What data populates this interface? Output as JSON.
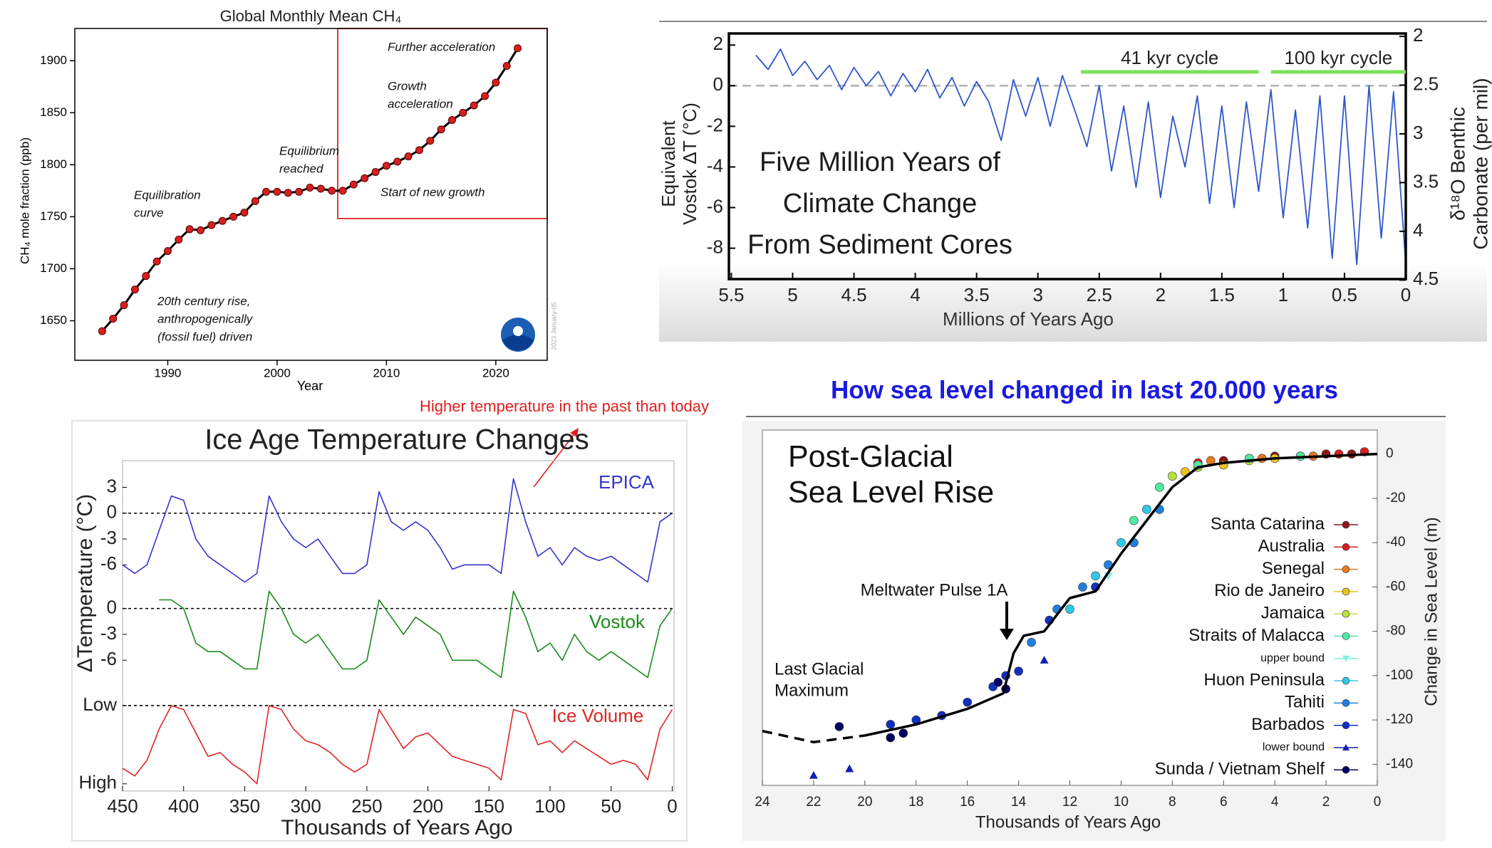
{
  "chart_data": [
    {
      "type": "line",
      "title": "Global Monthly Mean CH₄",
      "x_label": "Year",
      "y_label": "CH₄ mole fraction (ppb)",
      "xlim": [
        1981.5,
        2024.7
      ],
      "xticks": [
        1990,
        2000,
        2010,
        2020
      ],
      "ylim": [
        1612,
        1931
      ],
      "yticks": [
        1650,
        1700,
        1750,
        1800,
        1850,
        1900
      ],
      "x": [
        1984,
        1985,
        1986,
        1987,
        1988,
        1989,
        1990,
        1991,
        1992,
        1993,
        1994,
        1995,
        1996,
        1997,
        1998,
        1999,
        2000,
        2001,
        2002,
        2003,
        2004,
        2005,
        2006,
        2007,
        2008,
        2009,
        2010,
        2011,
        2012,
        2013,
        2014,
        2015,
        2016,
        2017,
        2018,
        2019,
        2020,
        2021,
        2022
      ],
      "series": [
        {
          "color": "#000000",
          "marker_color": "#d62020",
          "values": [
            1640,
            1652,
            1665,
            1680,
            1693,
            1707,
            1717,
            1728,
            1738,
            1737,
            1742,
            1746,
            1750,
            1754,
            1765,
            1774,
            1774,
            1773,
            1774,
            1778,
            1777,
            1775,
            1775,
            1781,
            1787,
            1793,
            1799,
            1803,
            1808,
            1814,
            1823,
            1834,
            1843,
            1850,
            1857,
            1866,
            1879,
            1895,
            1912
          ]
        }
      ],
      "annotations": [
        {
          "lines": [
            "Further acceleration"
          ]
        },
        {
          "lines": [
            "Growth",
            "acceleration"
          ]
        },
        {
          "lines": [
            "Equilibrium",
            "reached"
          ]
        },
        {
          "lines": [
            "Equilibration",
            "curve"
          ]
        },
        {
          "lines": [
            "Start of new growth"
          ]
        },
        {
          "lines": [
            "20th century rise,",
            "anthropogenically",
            "(fossil fuel) driven"
          ]
        }
      ],
      "stamp": "2023 January-05"
    },
    {
      "type": "line",
      "title_lines": [
        "Five Million Years of",
        "Climate Change",
        "From Sediment Cores"
      ],
      "x_label": "Millions of Years Ago",
      "y_label": [
        "Equivalent",
        "Vostok ΔT (°C)"
      ],
      "y2_label": [
        "δ¹⁸O Benthic",
        "Carbonate (per mil)"
      ],
      "xlim": [
        5.52,
        0
      ],
      "xticks": [
        5.5,
        5,
        4.5,
        4,
        3.5,
        3,
        2.5,
        2,
        1.5,
        1,
        0.5,
        0
      ],
      "ylim": [
        -9.52,
        2.57
      ],
      "yticks": [
        2,
        0,
        -2,
        -4,
        -6,
        -8
      ],
      "y2lim": [
        4.49,
        1.97
      ],
      "y2ticks": [
        2,
        2.5,
        3,
        3.5,
        4,
        4.5
      ],
      "hline": 0,
      "x": [
        5.3,
        5.2,
        5.1,
        5.0,
        4.9,
        4.8,
        4.7,
        4.6,
        4.5,
        4.4,
        4.3,
        4.2,
        4.1,
        4.0,
        3.9,
        3.8,
        3.7,
        3.6,
        3.5,
        3.4,
        3.3,
        3.2,
        3.1,
        3.0,
        2.9,
        2.8,
        2.7,
        2.6,
        2.5,
        2.4,
        2.3,
        2.2,
        2.1,
        2.0,
        1.9,
        1.8,
        1.7,
        1.6,
        1.5,
        1.4,
        1.3,
        1.2,
        1.1,
        1.0,
        0.9,
        0.8,
        0.7,
        0.6,
        0.5,
        0.4,
        0.3,
        0.2,
        0.1,
        0
      ],
      "series": [
        {
          "color": "#2f55c9",
          "values": [
            1.5,
            0.8,
            1.8,
            0.5,
            1.2,
            0.3,
            1.0,
            -0.2,
            0.9,
            0.0,
            0.7,
            -0.5,
            0.6,
            -0.3,
            0.8,
            -0.6,
            0.4,
            -1.0,
            0.2,
            -0.8,
            -2.7,
            0.3,
            -1.5,
            0.4,
            -2.0,
            0.5,
            -1.2,
            -3.0,
            0.0,
            -4.2,
            -1.0,
            -5.0,
            -0.8,
            -5.5,
            -1.5,
            -4.0,
            -0.5,
            -5.8,
            -1.0,
            -6.0,
            -0.8,
            -5.2,
            -0.2,
            -6.5,
            -1.2,
            -7.0,
            -0.5,
            -8.5,
            -0.5,
            -8.8,
            0.0,
            -7.5,
            -0.3,
            -8.8
          ]
        }
      ],
      "cycle_color": "#7ee05a",
      "cycles": [
        {
          "label": "41 kyr cycle",
          "range": [
            2.65,
            1.2
          ]
        },
        {
          "label": "100 kyr cycle",
          "range": [
            1.1,
            0
          ]
        }
      ]
    },
    {
      "type": "line",
      "title": "Ice Age Temperature Changes",
      "x_label": "Thousands of Years Ago",
      "y_label": "ΔTemperature (°C)",
      "annotation": "Higher temperature in the past than today",
      "xlim": [
        450,
        -1.5
      ],
      "xticks": [
        450,
        400,
        350,
        300,
        250,
        200,
        150,
        100,
        50,
        0
      ],
      "x": [
        0,
        10,
        20,
        30,
        40,
        50,
        60,
        70,
        80,
        90,
        100,
        110,
        120,
        130,
        140,
        150,
        160,
        170,
        180,
        190,
        200,
        210,
        220,
        230,
        240,
        250,
        260,
        270,
        280,
        290,
        300,
        310,
        320,
        330,
        340,
        350,
        360,
        370,
        380,
        390,
        400,
        410,
        420,
        430,
        440,
        450
      ],
      "series": [
        {
          "name": "EPICA",
          "color": "#3535cc",
          "ylim": [
            -9.2,
            6.1
          ],
          "yticks": [
            3,
            0,
            -3,
            -6
          ],
          "hline": 0,
          "values": [
            0,
            -1,
            -8,
            -7,
            -6,
            -5,
            -5.5,
            -5,
            -4,
            -6,
            -4,
            -5,
            -1,
            4,
            -7,
            -6,
            -6,
            -6,
            -6.5,
            -4,
            -2,
            -1,
            -2,
            -1,
            2.5,
            -6,
            -7,
            -7,
            -5,
            -3,
            -4,
            -3,
            -1,
            2,
            -7,
            -8,
            -7,
            -6,
            -5,
            -3,
            1.5,
            2,
            -2,
            -6,
            -7,
            -6
          ]
        },
        {
          "name": "Vostok",
          "color": "#1a8a1a",
          "ylim": [
            -9.2,
            4.1
          ],
          "yticks": [
            0,
            -3,
            -6
          ],
          "hline": 0,
          "values": [
            0,
            -2,
            -8,
            -7,
            -6,
            -5,
            -6,
            -5,
            -3,
            -6,
            -4,
            -5,
            -1,
            2,
            -8,
            -7,
            -6,
            -6,
            -6,
            -3,
            -2,
            -1,
            -3,
            -1,
            1,
            -6,
            -7,
            -7,
            -5,
            -3,
            -4,
            -3,
            0,
            2,
            -7,
            -7,
            -6,
            -5,
            -5,
            -4,
            0,
            1,
            1,
            null,
            null,
            null
          ]
        },
        {
          "name": "Ice Volume",
          "color": "#e02424",
          "ylim": [
            1.12,
            -0.1
          ],
          "yticks": [
            {
              "value": 0,
              "label": "Low"
            },
            {
              "value": 1,
              "label": "High"
            }
          ],
          "hline": 0,
          "values": [
            0.05,
            0.3,
            0.95,
            0.75,
            0.7,
            0.75,
            0.65,
            0.55,
            0.45,
            0.6,
            0.45,
            0.5,
            0.1,
            0.05,
            0.95,
            0.8,
            0.75,
            0.7,
            0.65,
            0.5,
            0.35,
            0.4,
            0.55,
            0.3,
            0.05,
            0.75,
            0.85,
            0.75,
            0.6,
            0.5,
            0.45,
            0.3,
            0.05,
            0.0,
            1.0,
            0.85,
            0.75,
            0.6,
            0.65,
            0.35,
            0.05,
            0.0,
            0.3,
            0.7,
            0.9,
            0.8
          ]
        }
      ]
    },
    {
      "type": "scatter",
      "heading": "How sea level changed in last 20.000 years",
      "title_lines": [
        "Post-Glacial",
        "Sea Level Rise"
      ],
      "x_label": "Thousands of Years Ago",
      "y_label": "Change in Sea Level (m)",
      "xlim": [
        24,
        0
      ],
      "xticks": [
        24,
        22,
        20,
        18,
        16,
        14,
        12,
        10,
        8,
        6,
        4,
        2,
        0
      ],
      "ylim": [
        -149.5,
        10.8
      ],
      "yticks": [
        0,
        -20,
        -40,
        -60,
        -80,
        -100,
        -120,
        -140
      ],
      "annotations": [
        {
          "lines": [
            "Meltwater Pulse 1A"
          ]
        },
        {
          "lines": [
            "Last Glacial",
            "Maximum"
          ]
        }
      ],
      "fit": {
        "color": "#000000",
        "x": [
          20,
          18,
          16,
          14.6,
          14.2,
          13.8,
          13,
          12,
          11,
          10,
          9,
          8,
          7,
          6,
          4,
          2,
          0
        ],
        "values": [
          -127,
          -122,
          -115,
          -108,
          -90,
          -82,
          -80,
          -65,
          -62,
          -45,
          -30,
          -15,
          -6,
          -4,
          -2,
          -1,
          0
        ]
      },
      "extrapolation": {
        "x": [
          24,
          22,
          20
        ],
        "values": [
          -125,
          -130,
          -127
        ]
      },
      "series": [
        {
          "name": "Santa Catarina",
          "color": "#8b1a1a",
          "marker": "circle",
          "x": [
            6,
            4,
            2,
            1
          ],
          "values": [
            -3,
            -1,
            0,
            0
          ]
        },
        {
          "name": "Australia",
          "color": "#d62020",
          "marker": "circle",
          "x": [
            7,
            5,
            3,
            1.5,
            0.5
          ],
          "values": [
            -4,
            -2,
            -1,
            0,
            1
          ]
        },
        {
          "name": "Senegal",
          "color": "#e87a20",
          "marker": "circle",
          "x": [
            6.5,
            4.5,
            2.5
          ],
          "values": [
            -3,
            -2,
            -1
          ]
        },
        {
          "name": "Rio de Janeiro",
          "color": "#e8c420",
          "marker": "circle",
          "x": [
            7.5,
            6,
            4
          ],
          "values": [
            -8,
            -5,
            -2
          ]
        },
        {
          "name": "Jamaica",
          "color": "#b8e040",
          "marker": "circle",
          "x": [
            8,
            7,
            5
          ],
          "values": [
            -10,
            -6,
            -3
          ]
        },
        {
          "name": "Straits of Malacca",
          "color": "#50e8a8",
          "marker": "circle",
          "x": [
            9.5,
            8.5,
            7,
            5,
            3
          ],
          "values": [
            -30,
            -15,
            -5,
            -2,
            -1
          ]
        },
        {
          "name": "upper bound",
          "color": "#80f0e0",
          "marker": "triangle-down",
          "x": [
            10.5,
            9
          ],
          "values": [
            -55,
            -25
          ]
        },
        {
          "name": "Huon Peninsula",
          "color": "#30c8e8",
          "marker": "circle",
          "x": [
            12,
            11,
            10,
            9
          ],
          "values": [
            -70,
            -55,
            -40,
            -25
          ]
        },
        {
          "name": "Tahiti",
          "color": "#2080e0",
          "marker": "circle",
          "x": [
            13.5,
            12.5,
            11.5,
            10.5,
            9.5,
            8.5
          ],
          "values": [
            -85,
            -70,
            -60,
            -50,
            -40,
            -25
          ]
        },
        {
          "name": "Barbados",
          "color": "#1030c0",
          "marker": "circle",
          "x": [
            19,
            18,
            17,
            16,
            15,
            14.5,
            14,
            12.8,
            11
          ],
          "values": [
            -122,
            -120,
            -118,
            -112,
            -105,
            -100,
            -98,
            -75,
            -60
          ]
        },
        {
          "name": "lower bound",
          "color": "#1020b0",
          "marker": "triangle-up",
          "x": [
            22,
            20.6,
            13
          ],
          "values": [
            -145,
            -142,
            -93
          ]
        },
        {
          "name": "Sunda / Vietnam Shelf",
          "color": "#000060",
          "marker": "circle",
          "x": [
            21,
            19,
            18.5,
            14.8,
            14.5
          ],
          "values": [
            -123,
            -128,
            -126,
            -103,
            -106
          ]
        }
      ]
    }
  ]
}
